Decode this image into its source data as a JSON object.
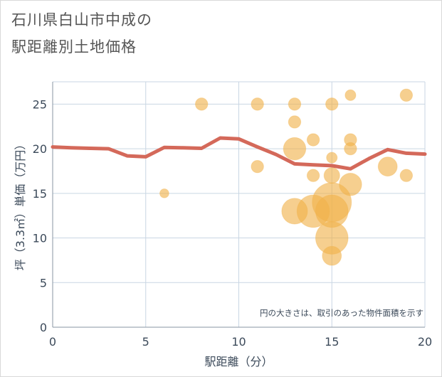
{
  "header": {
    "title_line1": "石川県白山市中成の",
    "title_line2": "駅距離別土地価格"
  },
  "colors": {
    "bubble": "#f0b24a",
    "line": "#d4695a",
    "grid": "#c9d6e3",
    "text": "#3c4a5a"
  },
  "chart_data": {
    "type": "scatter",
    "xlabel": "駅距離（分）",
    "ylabel": "坪（3.3㎡）単価（万円）",
    "xlim": [
      0,
      20
    ],
    "ylim": [
      0,
      27.5
    ],
    "xticks": [
      "0",
      "5",
      "10",
      "15",
      "20"
    ],
    "yticks": [
      "0",
      "5",
      "10",
      "15",
      "20",
      "25"
    ],
    "xtick_values": [
      0,
      5,
      10,
      15,
      20
    ],
    "ytick_values": [
      0,
      5,
      10,
      15,
      20,
      25
    ],
    "grid": true,
    "note": "円の大きさは、取引のあった物件面積を示す",
    "bubbles": [
      {
        "x": 6,
        "y": 15,
        "size": 1
      },
      {
        "x": 8,
        "y": 25,
        "size": 2
      },
      {
        "x": 11,
        "y": 25,
        "size": 2
      },
      {
        "x": 11,
        "y": 18,
        "size": 2
      },
      {
        "x": 13,
        "y": 25,
        "size": 2
      },
      {
        "x": 13,
        "y": 23,
        "size": 2
      },
      {
        "x": 13,
        "y": 20,
        "size": 5
      },
      {
        "x": 13,
        "y": 13,
        "size": 6
      },
      {
        "x": 14,
        "y": 21,
        "size": 2
      },
      {
        "x": 14,
        "y": 17,
        "size": 2
      },
      {
        "x": 14,
        "y": 13,
        "size": 8
      },
      {
        "x": 15,
        "y": 25,
        "size": 2
      },
      {
        "x": 15,
        "y": 19,
        "size": 1.5
      },
      {
        "x": 15,
        "y": 17,
        "size": 3
      },
      {
        "x": 15,
        "y": 14,
        "size": 10
      },
      {
        "x": 15,
        "y": 13,
        "size": 8
      },
      {
        "x": 15,
        "y": 10,
        "size": 8
      },
      {
        "x": 15,
        "y": 8,
        "size": 4
      },
      {
        "x": 16,
        "y": 26,
        "size": 1.5
      },
      {
        "x": 16,
        "y": 21,
        "size": 2
      },
      {
        "x": 16,
        "y": 20,
        "size": 2
      },
      {
        "x": 16,
        "y": 16,
        "size": 5
      },
      {
        "x": 18,
        "y": 18,
        "size": 4
      },
      {
        "x": 19,
        "y": 26,
        "size": 2
      },
      {
        "x": 19,
        "y": 17,
        "size": 2
      }
    ],
    "series": [
      {
        "type": "line",
        "x": [
          0,
          1,
          2,
          3,
          4,
          5,
          6,
          7,
          8,
          9,
          10,
          11,
          12,
          13,
          14,
          15,
          16,
          17,
          18,
          19,
          20
        ],
        "y": [
          20.2,
          20.1,
          20.05,
          20.0,
          19.2,
          19.1,
          20.15,
          20.1,
          20.05,
          21.2,
          21.1,
          20.2,
          19.35,
          18.3,
          18.2,
          18.1,
          17.75,
          18.9,
          19.9,
          19.5,
          19.4
        ]
      }
    ]
  }
}
